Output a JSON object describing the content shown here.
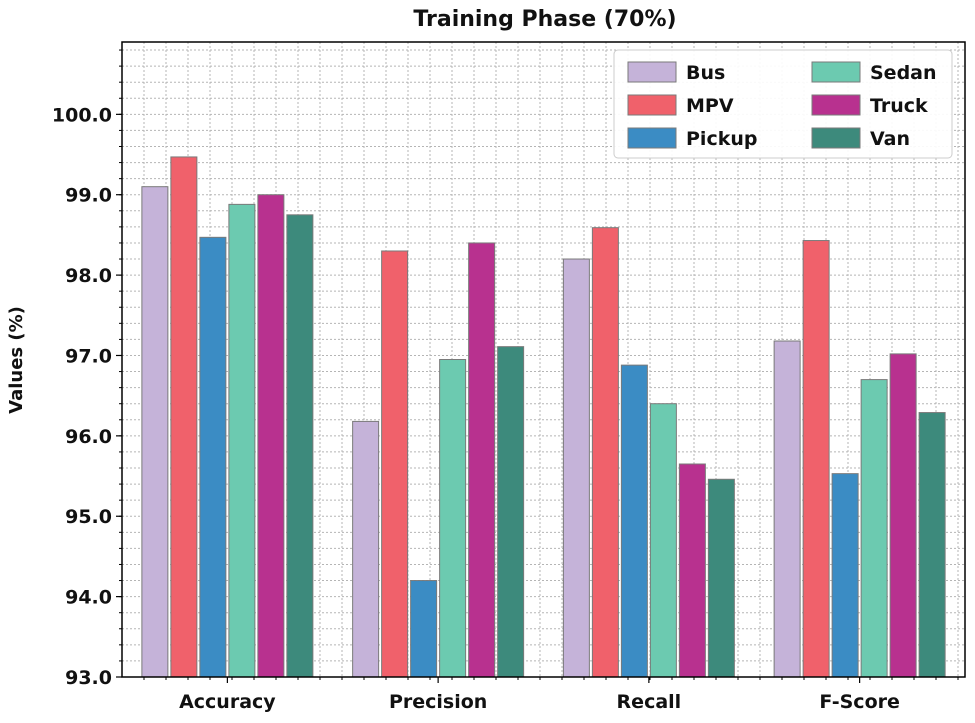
{
  "chart_data": {
    "type": "bar",
    "title": "Training Phase (70%)",
    "xlabel": "",
    "ylabel": "Values (%)",
    "ylim": [
      93.0,
      100.9
    ],
    "yticks": [
      "93.0",
      "94.0",
      "95.0",
      "96.0",
      "97.0",
      "98.0",
      "99.0",
      "100.0"
    ],
    "categories": [
      "Accuracy",
      "Precision",
      "Recall",
      "F-Score"
    ],
    "grid": true,
    "legend_position": "top-right",
    "series": [
      {
        "name": "Bus",
        "color": "#c5b3d9",
        "values": [
          99.1,
          96.18,
          98.2,
          97.18
        ]
      },
      {
        "name": "MPV",
        "color": "#f0616b",
        "values": [
          99.47,
          98.3,
          98.59,
          98.43
        ]
      },
      {
        "name": "Pickup",
        "color": "#3b8cc4",
        "values": [
          98.47,
          94.2,
          96.88,
          95.53
        ]
      },
      {
        "name": "Sedan",
        "color": "#6ccab0",
        "values": [
          98.88,
          96.95,
          96.4,
          96.7
        ]
      },
      {
        "name": "Truck",
        "color": "#b8318f",
        "values": [
          99.0,
          98.4,
          95.65,
          97.02
        ]
      },
      {
        "name": "Van",
        "color": "#3d8a7c",
        "values": [
          98.75,
          97.11,
          95.46,
          96.29
        ]
      }
    ]
  }
}
